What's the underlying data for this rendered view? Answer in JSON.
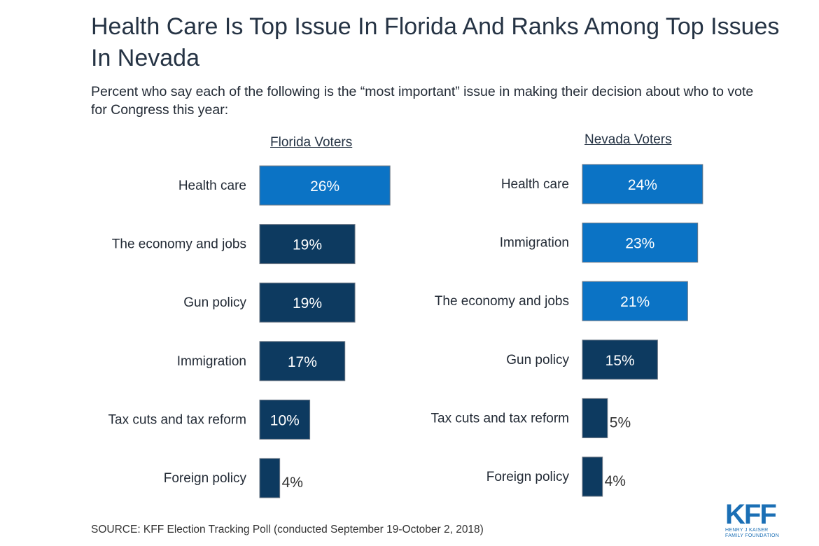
{
  "header": {
    "title": "Health Care Is Top Issue In Florida And Ranks Among Top Issues In Nevada",
    "subtitle": "Percent who say each of the following is the “most important” issue in making their decision about who to vote for Congress this year:"
  },
  "footer": {
    "source": "SOURCE: KFF Election Tracking Poll (conducted September 19-October 2, 2018)",
    "logo_text": "KFF",
    "logo_subtext_1": "HENRY J KAISER",
    "logo_subtext_2": "FAMILY FOUNDATION"
  },
  "colors": {
    "highlight": "#0b73c5",
    "default": "#0d3a60",
    "label_inside": "#ffffff",
    "label_outside": "#333333"
  },
  "chart_data": [
    {
      "type": "bar",
      "orientation": "horizontal",
      "title": "Florida Voters",
      "categories": [
        "Health care",
        "The economy and jobs",
        "Gun policy",
        "Immigration",
        "Tax cuts and tax reform",
        "Foreign policy"
      ],
      "values": [
        26,
        19,
        19,
        17,
        10,
        4
      ],
      "labels": [
        "26%",
        "19%",
        "19%",
        "17%",
        "10%",
        "4%"
      ],
      "highlighted": [
        true,
        false,
        false,
        false,
        false,
        false
      ],
      "unit": "%",
      "xlim": [
        0,
        26
      ],
      "grid": false,
      "axes_visible": false
    },
    {
      "type": "bar",
      "orientation": "horizontal",
      "title": "Nevada Voters",
      "categories": [
        "Health care",
        "Immigration",
        "The economy and jobs",
        "Gun policy",
        "Tax cuts and tax reform",
        "Foreign policy"
      ],
      "values": [
        24,
        23,
        21,
        15,
        5,
        4
      ],
      "labels": [
        "24%",
        "23%",
        "21%",
        "15%",
        "5%",
        "4%"
      ],
      "highlighted": [
        true,
        true,
        true,
        false,
        false,
        false
      ],
      "unit": "%",
      "xlim": [
        0,
        24
      ],
      "grid": false,
      "axes_visible": false
    }
  ]
}
